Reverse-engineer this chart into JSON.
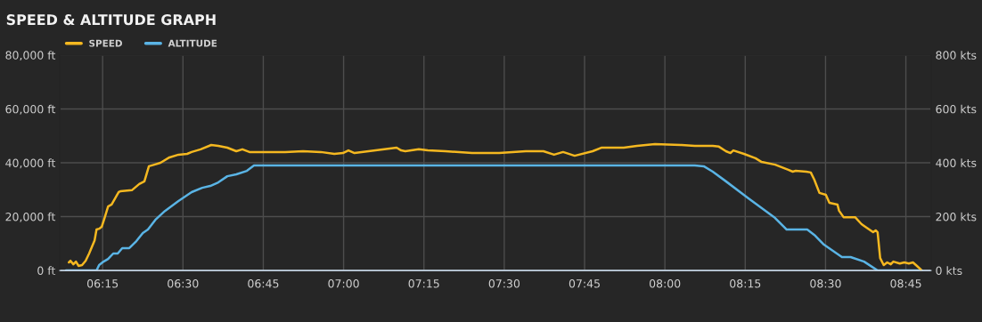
{
  "chart_data": {
    "type": "line",
    "title": "SPEED & ALTITUDE GRAPH",
    "xlim": [
      6.117,
      8.828
    ],
    "xticks": [
      {
        "value": 6.25,
        "label": "06:15"
      },
      {
        "value": 6.5,
        "label": "06:30"
      },
      {
        "value": 6.75,
        "label": "06:45"
      },
      {
        "value": 7.0,
        "label": "07:00"
      },
      {
        "value": 7.25,
        "label": "07:15"
      },
      {
        "value": 7.5,
        "label": "07:30"
      },
      {
        "value": 7.75,
        "label": "07:45"
      },
      {
        "value": 8.0,
        "label": "08:00"
      },
      {
        "value": 8.25,
        "label": "08:15"
      },
      {
        "value": 8.5,
        "label": "08:30"
      },
      {
        "value": 8.75,
        "label": "08:45"
      }
    ],
    "ylim": [
      0,
      80000
    ],
    "yticks": [
      {
        "value": 0,
        "label": "0 ft"
      },
      {
        "value": 20000,
        "label": "20,000 ft"
      },
      {
        "value": 40000,
        "label": "40,000 ft"
      },
      {
        "value": 60000,
        "label": "60,000 ft"
      },
      {
        "value": 80000,
        "label": "80,000 ft"
      }
    ],
    "y2lim": [
      0,
      800
    ],
    "y2ticks": [
      {
        "value": 0,
        "label": "0 kts"
      },
      {
        "value": 200,
        "label": "200 kts"
      },
      {
        "value": 400,
        "label": "400 kts"
      },
      {
        "value": 600,
        "label": "600 kts"
      },
      {
        "value": 800,
        "label": "800 kts"
      }
    ],
    "grid": true,
    "legend": "top left",
    "marker": "none",
    "line_style": "solid",
    "series": [
      {
        "name": "SPEED",
        "color": "#f5b820",
        "axis": "y2",
        "x": [
          6.145,
          6.15,
          6.159,
          6.167,
          6.175,
          6.186,
          6.197,
          6.208,
          6.225,
          6.231,
          6.239,
          6.247,
          6.256,
          6.267,
          6.278,
          6.3,
          6.305,
          6.341,
          6.364,
          6.38,
          6.394,
          6.411,
          6.43,
          6.458,
          6.486,
          6.513,
          6.527,
          6.555,
          6.588,
          6.61,
          6.638,
          6.666,
          6.685,
          6.707,
          6.763,
          6.818,
          6.874,
          6.929,
          6.971,
          6.998,
          7.015,
          7.034,
          7.165,
          7.179,
          7.192,
          7.234,
          7.262,
          7.317,
          7.4,
          7.484,
          7.567,
          7.622,
          7.655,
          7.683,
          7.694,
          7.719,
          7.775,
          7.802,
          7.872,
          7.913,
          7.969,
          8.052,
          8.093,
          8.149,
          8.168,
          8.19,
          8.204,
          8.213,
          8.246,
          8.282,
          8.301,
          8.343,
          8.384,
          8.398,
          8.407,
          8.44,
          8.454,
          8.465,
          8.481,
          8.501,
          8.512,
          8.537,
          8.542,
          8.556,
          8.592,
          8.612,
          8.648,
          8.656,
          8.662,
          8.67,
          8.681,
          8.692,
          8.703,
          8.711,
          8.731,
          8.745,
          8.759,
          8.772,
          8.786,
          8.797
        ],
        "values": [
          30,
          36,
          23,
          33,
          17,
          20,
          36,
          63,
          112,
          152,
          155,
          162,
          195,
          238,
          245,
          291,
          294,
          298,
          321,
          331,
          387,
          393,
          400,
          420,
          430,
          433,
          440,
          450,
          466,
          463,
          456,
          443,
          450,
          440,
          440,
          440,
          443,
          440,
          433,
          436,
          446,
          436,
          456,
          446,
          443,
          450,
          446,
          443,
          436,
          436,
          443,
          443,
          430,
          440,
          436,
          426,
          443,
          456,
          456,
          463,
          469,
          466,
          463,
          463,
          460,
          443,
          436,
          446,
          433,
          417,
          403,
          393,
          374,
          367,
          370,
          367,
          364,
          337,
          288,
          281,
          251,
          245,
          222,
          198,
          198,
          172,
          142,
          149,
          142,
          46,
          20,
          30,
          23,
          33,
          26,
          30,
          26,
          30,
          15,
          3
        ]
      },
      {
        "name": "ALTITUDE",
        "color": "#5ab4e5",
        "x": [
          6.136,
          6.231,
          6.239,
          6.253,
          6.267,
          6.283,
          6.297,
          6.311,
          6.333,
          6.355,
          6.375,
          6.391,
          6.414,
          6.444,
          6.486,
          6.527,
          6.56,
          6.585,
          6.61,
          6.638,
          6.666,
          6.699,
          6.721,
          8.093,
          8.121,
          8.149,
          8.19,
          8.26,
          8.343,
          8.379,
          8.443,
          8.468,
          8.495,
          8.523,
          8.551,
          8.578,
          8.62,
          8.662,
          8.8
        ],
        "values": [
          0,
          0,
          2000,
          3300,
          4300,
          6300,
          6300,
          8300,
          8300,
          10900,
          13900,
          15200,
          18800,
          22100,
          25800,
          29100,
          30700,
          31400,
          32700,
          35000,
          35700,
          37000,
          39000,
          39000,
          38700,
          36700,
          33100,
          26800,
          19500,
          15200,
          15200,
          12900,
          9600,
          7300,
          5000,
          5000,
          3300,
          0,
          0
        ]
      }
    ]
  }
}
